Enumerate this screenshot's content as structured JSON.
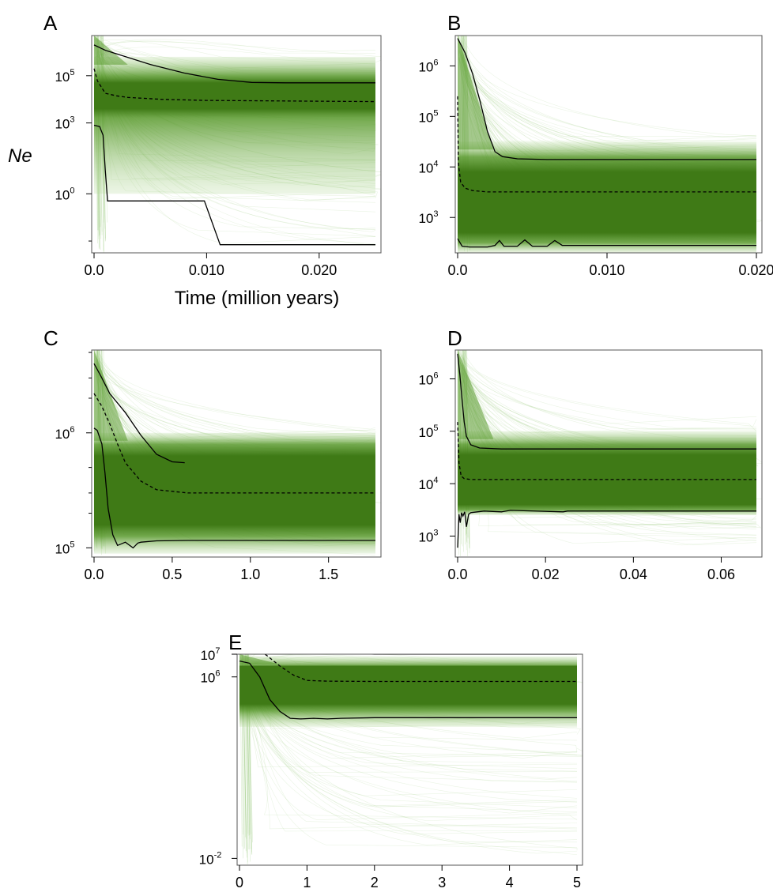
{
  "figure": {
    "ylabel": "Ne",
    "xlabel": "Time (million years)"
  },
  "colors": {
    "band_dark": "#3f7a16",
    "band_mid": "#5a9a2e",
    "band_light": "#b4d99a",
    "trace": "#8cc46a",
    "line": "#000000"
  },
  "chart_data": [
    {
      "panel": "A",
      "type": "line",
      "yscale": "log",
      "xlim": [
        0,
        0.025
      ],
      "ylim_log": [
        -2.5,
        6.7
      ],
      "xticks": [
        0.0,
        0.01,
        0.02
      ],
      "xtick_labels": [
        "0.0",
        "0.010",
        "0.020"
      ],
      "yticks": [
        {
          "value": 100000,
          "base": "10",
          "exp": "5"
        },
        {
          "value": 1000,
          "base": "10",
          "exp": "3"
        },
        {
          "value": 1,
          "base": "10",
          "exp": "0"
        }
      ],
      "minor_yticks": [
        0.01
      ],
      "band": {
        "dark_log": [
          3.6,
          4.7
        ],
        "mid_log": [
          3.2,
          5.0
        ],
        "light_log": [
          0.0,
          5.8
        ]
      },
      "series": [
        {
          "style": "solid",
          "x": [
            0,
            0.001,
            0.003,
            0.005,
            0.008,
            0.011,
            0.014,
            0.017,
            0.025
          ],
          "y": [
            2000000,
            1200000,
            600000,
            300000,
            130000,
            70000,
            52000,
            50000,
            50000
          ]
        },
        {
          "style": "dashed",
          "x": [
            0,
            0.0003,
            0.001,
            0.002,
            0.003,
            0.006,
            0.01,
            0.025
          ],
          "y": [
            200000,
            60000,
            18000,
            14000,
            12000,
            10000,
            9000,
            8000
          ]
        },
        {
          "style": "solid",
          "x": [
            0,
            0.0005,
            0.0008,
            0.001,
            0.0012,
            0.0098,
            0.0112,
            0.025
          ],
          "y": [
            800,
            700,
            300,
            10,
            0.5,
            0.5,
            0.007,
            0.007
          ]
        }
      ]
    },
    {
      "panel": "B",
      "type": "line",
      "yscale": "log",
      "xlim": [
        0,
        0.02
      ],
      "ylim_log": [
        2.3,
        6.6
      ],
      "xticks": [
        0.0,
        0.01,
        0.02
      ],
      "xtick_labels": [
        "0.0",
        "0.010",
        "0.020"
      ],
      "yticks": [
        {
          "value": 1000000,
          "base": "10",
          "exp": "6"
        },
        {
          "value": 100000,
          "base": "10",
          "exp": "5"
        },
        {
          "value": 10000,
          "base": "10",
          "exp": "4"
        },
        {
          "value": 1000,
          "base": "10",
          "exp": "3"
        }
      ],
      "band": {
        "dark_log": [
          2.7,
          3.9
        ],
        "mid_log": [
          2.5,
          4.2
        ],
        "light_log": [
          2.3,
          4.5
        ]
      },
      "series": [
        {
          "style": "solid",
          "x": [
            0,
            0.0005,
            0.001,
            0.0015,
            0.002,
            0.0025,
            0.003,
            0.004,
            0.006,
            0.02
          ],
          "y": [
            3500000,
            1800000,
            700000,
            200000,
            50000,
            20000,
            16000,
            14500,
            14000,
            14000
          ]
        },
        {
          "style": "dashed",
          "x": [
            0,
            5e-05,
            0.0002,
            0.0005,
            0.001,
            0.002,
            0.02
          ],
          "y": [
            250000,
            12000,
            5000,
            3800,
            3400,
            3200,
            3200
          ]
        },
        {
          "style": "solid",
          "x": [
            0,
            0.0003,
            0.0008,
            0.002,
            0.0025,
            0.0028,
            0.0031,
            0.004,
            0.0045,
            0.005,
            0.006,
            0.0065,
            0.007,
            0.02
          ],
          "y": [
            380,
            270,
            260,
            260,
            280,
            350,
            270,
            270,
            360,
            270,
            270,
            350,
            280,
            280
          ]
        }
      ]
    },
    {
      "panel": "C",
      "type": "line",
      "yscale": "log",
      "xlim": [
        0,
        1.8
      ],
      "ylim_log": [
        4.92,
        6.72
      ],
      "xticks": [
        0.0,
        0.5,
        1.0,
        1.5
      ],
      "xtick_labels": [
        "0.0",
        "0.5",
        "1.0",
        "1.5"
      ],
      "yticks": [
        {
          "value": 1000000,
          "base": "10",
          "exp": "6"
        },
        {
          "value": 100000,
          "base": "10",
          "exp": "5"
        }
      ],
      "minor_yticks": [
        200000,
        300000,
        500000,
        2000000,
        3000000,
        5000000
      ],
      "band": {
        "dark_log": [
          5.2,
          5.8
        ],
        "mid_log": [
          5.1,
          5.9
        ],
        "light_log": [
          4.95,
          6.0
        ]
      },
      "series": [
        {
          "style": "solid",
          "x": [
            0,
            0.05,
            0.1,
            0.2,
            0.3,
            0.4,
            0.5,
            0.58
          ],
          "y": [
            4000000,
            3000000,
            2200000,
            1500000,
            950000,
            650000,
            560000,
            550000
          ]
        },
        {
          "style": "dashed",
          "x": [
            0,
            0.05,
            0.1,
            0.15,
            0.2,
            0.3,
            0.4,
            0.6,
            1.8
          ],
          "y": [
            2200000,
            1700000,
            1200000,
            800000,
            550000,
            380000,
            320000,
            300000,
            300000
          ]
        },
        {
          "style": "solid",
          "x": [
            0,
            0.02,
            0.05,
            0.07,
            0.09,
            0.12,
            0.15,
            0.2,
            0.25,
            0.28,
            0.3,
            0.4,
            0.6,
            1.8
          ],
          "y": [
            1100000,
            1050000,
            800000,
            450000,
            220000,
            130000,
            105000,
            112000,
            100000,
            110000,
            112000,
            115000,
            116000,
            116000
          ]
        }
      ]
    },
    {
      "panel": "D",
      "type": "line",
      "yscale": "log",
      "xlim": [
        0,
        0.068
      ],
      "ylim_log": [
        2.6,
        6.55
      ],
      "xticks": [
        0.0,
        0.02,
        0.04,
        0.06
      ],
      "xtick_labels": [
        "0.0",
        "0.02",
        "0.04",
        "0.06"
      ],
      "yticks": [
        {
          "value": 1000000,
          "base": "10",
          "exp": "6"
        },
        {
          "value": 100000,
          "base": "10",
          "exp": "5"
        },
        {
          "value": 10000,
          "base": "10",
          "exp": "4"
        },
        {
          "value": 1000,
          "base": "10",
          "exp": "3"
        }
      ],
      "band": {
        "dark_log": [
          3.6,
          4.55
        ],
        "mid_log": [
          3.5,
          4.75
        ],
        "light_log": [
          3.4,
          5.0
        ]
      },
      "series": [
        {
          "style": "solid",
          "x": [
            0,
            0.0005,
            0.001,
            0.0015,
            0.002,
            0.003,
            0.005,
            0.01,
            0.068
          ],
          "y": [
            3000000,
            1200000,
            400000,
            150000,
            80000,
            55000,
            48000,
            46000,
            46000
          ]
        },
        {
          "style": "dashed",
          "x": [
            0,
            0.0003,
            0.0008,
            0.0015,
            0.003,
            0.068
          ],
          "y": [
            150000,
            25000,
            14000,
            12500,
            12000,
            12000
          ]
        },
        {
          "style": "solid",
          "x": [
            0,
            0.0003,
            0.0006,
            0.0009,
            0.0012,
            0.0016,
            0.002,
            0.0025,
            0.003,
            0.006,
            0.01,
            0.012,
            0.024,
            0.025,
            0.068
          ],
          "y": [
            600,
            2600,
            1800,
            2800,
            2400,
            2900,
            1500,
            2600,
            2800,
            3000,
            2900,
            3100,
            2900,
            3000,
            3000
          ]
        }
      ]
    },
    {
      "panel": "E",
      "type": "line",
      "yscale": "log",
      "xlim": [
        0,
        5
      ],
      "ylim_log": [
        -2.3,
        7
      ],
      "xticks": [
        0,
        1,
        2,
        3,
        4,
        5
      ],
      "xtick_labels": [
        "0",
        "1",
        "2",
        "3",
        "4",
        "5"
      ],
      "yticks": [
        {
          "value": 10000000,
          "base": "10",
          "exp": "7"
        },
        {
          "value": 1000000,
          "base": "10",
          "exp": "6"
        },
        {
          "value": 0.01,
          "base": "10",
          "exp": "-2"
        }
      ],
      "band": {
        "dark_log": [
          4.8,
          6.6
        ],
        "mid_log": [
          4.5,
          6.5
        ],
        "light_log": [
          3.8,
          6.9
        ]
      },
      "series": [
        {
          "style": "solid",
          "x": [
            0,
            0.2,
            0.5,
            0.8,
            1.2,
            1.6,
            2.0,
            3.0,
            5.0
          ],
          "y": [
            80000000,
            60000000,
            40000000,
            25000000,
            15000000,
            11000000,
            10000000,
            10000000,
            10000000
          ]
        },
        {
          "style": "dashed",
          "x": [
            0,
            0.2,
            0.4,
            0.6,
            0.8,
            1.0,
            1.3,
            2.0,
            5.0
          ],
          "y": [
            28000000,
            18000000,
            9000000,
            3000000,
            1200000,
            700000,
            650000,
            630000,
            630000
          ]
        },
        {
          "style": "solid",
          "x": [
            0,
            0.15,
            0.3,
            0.45,
            0.6,
            0.75,
            0.9,
            1.1,
            1.3,
            1.5,
            2.0,
            3.0,
            5.0
          ],
          "y": [
            5000000,
            4000000,
            1000000,
            100000,
            30000,
            15000,
            14000,
            15000,
            14000,
            15000,
            16000,
            16000,
            16000
          ]
        }
      ]
    }
  ]
}
